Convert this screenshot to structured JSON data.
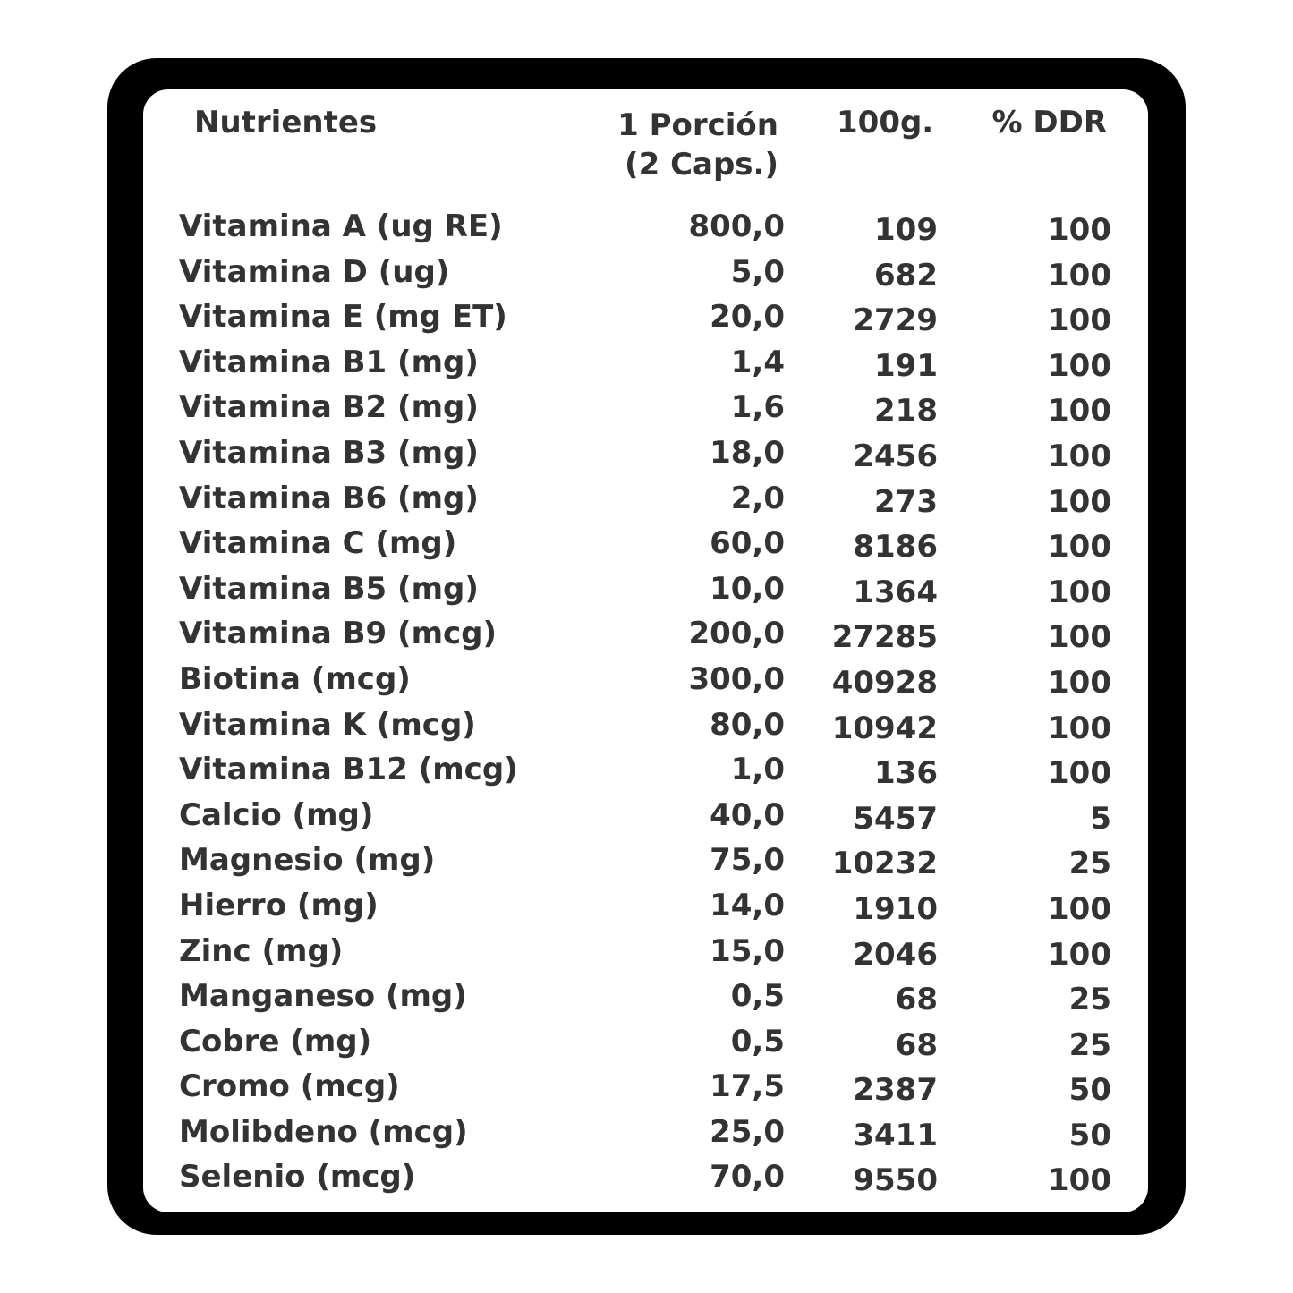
{
  "header": {
    "nutrients": "Nutrientes",
    "portion_line1": "1 Porción",
    "portion_line2": "(2 Caps.)",
    "per100": "100g.",
    "ddr": "% DDR"
  },
  "rows": [
    {
      "name": "Vitamina A (ug RE)",
      "portion": "800,0",
      "per100": "109",
      "ddr": "100"
    },
    {
      "name": "Vitamina D (ug)",
      "portion": "5,0",
      "per100": "682",
      "ddr": "100"
    },
    {
      "name": "Vitamina E (mg ET)",
      "portion": "20,0",
      "per100": "2729",
      "ddr": "100"
    },
    {
      "name": "Vitamina B1 (mg)",
      "portion": "1,4",
      "per100": "191",
      "ddr": "100"
    },
    {
      "name": "Vitamina B2 (mg)",
      "portion": "1,6",
      "per100": "218",
      "ddr": "100"
    },
    {
      "name": "Vitamina B3 (mg)",
      "portion": "18,0",
      "per100": "2456",
      "ddr": "100"
    },
    {
      "name": "Vitamina B6 (mg)",
      "portion": "2,0",
      "per100": "273",
      "ddr": "100"
    },
    {
      "name": "Vitamina C (mg)",
      "portion": "60,0",
      "per100": "8186",
      "ddr": "100"
    },
    {
      "name": "Vitamina B5 (mg)",
      "portion": "10,0",
      "per100": "1364",
      "ddr": "100"
    },
    {
      "name": "Vitamina B9 (mcg)",
      "portion": "200,0",
      "per100": "27285",
      "ddr": "100"
    },
    {
      "name": "Biotina (mcg)",
      "portion": "300,0",
      "per100": "40928",
      "ddr": "100"
    },
    {
      "name": "Vitamina K (mcg)",
      "portion": "80,0",
      "per100": "10942",
      "ddr": "100"
    },
    {
      "name": "Vitamina B12 (mcg)",
      "portion": "1,0",
      "per100": "136",
      "ddr": "100"
    },
    {
      "name": "Calcio (mg)",
      "portion": "40,0",
      "per100": "5457",
      "ddr": "5"
    },
    {
      "name": "Magnesio (mg)",
      "portion": "75,0",
      "per100": "10232",
      "ddr": "25"
    },
    {
      "name": "Hierro (mg)",
      "portion": "14,0",
      "per100": "1910",
      "ddr": "100"
    },
    {
      "name": "Zinc (mg)",
      "portion": "15,0",
      "per100": "2046",
      "ddr": "100"
    },
    {
      "name": "Manganeso (mg)",
      "portion": "0,5",
      "per100": "68",
      "ddr": "25"
    },
    {
      "name": "Cobre (mg)",
      "portion": "0,5",
      "per100": "68",
      "ddr": "25"
    },
    {
      "name": "Cromo (mcg)",
      "portion": "17,5",
      "per100": "2387",
      "ddr": "50"
    },
    {
      "name": "Molibdeno (mcg)",
      "portion": "25,0",
      "per100": "3411",
      "ddr": "50"
    },
    {
      "name": "Selenio (mcg)",
      "portion": "70,0",
      "per100": "9550",
      "ddr": "100"
    }
  ]
}
